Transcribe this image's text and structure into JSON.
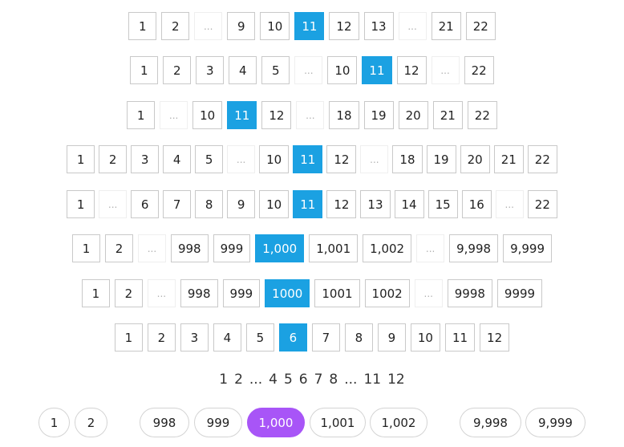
{
  "rows": [
    {
      "items": [
        "1",
        "2",
        "...",
        "9",
        "10",
        "11",
        "12",
        "13",
        "...",
        "21",
        "22"
      ],
      "active": 5
    },
    {
      "items": [
        "1",
        "2",
        "3",
        "4",
        "5",
        "...",
        "10",
        "11",
        "12",
        "...",
        "22"
      ],
      "active": 7
    },
    {
      "items": [
        "1",
        "...",
        "10",
        "11",
        "12",
        "...",
        "18",
        "19",
        "20",
        "21",
        "22"
      ],
      "active": 3
    },
    {
      "items": [
        "1",
        "2",
        "3",
        "4",
        "5",
        "...",
        "10",
        "11",
        "12",
        "...",
        "18",
        "19",
        "20",
        "21",
        "22"
      ],
      "active": 7
    },
    {
      "items": [
        "1",
        "...",
        "6",
        "7",
        "8",
        "9",
        "10",
        "11",
        "12",
        "13",
        "14",
        "15",
        "16",
        "...",
        "22"
      ],
      "active": 7
    },
    {
      "items": [
        "1",
        "2",
        "...",
        "998",
        "999",
        "1,000",
        "1,001",
        "1,002",
        "...",
        "9,998",
        "9,999"
      ],
      "active": 5
    },
    {
      "items": [
        "1",
        "2",
        "...",
        "998",
        "999",
        "1000",
        "1001",
        "1002",
        "...",
        "9998",
        "9999"
      ],
      "active": 5
    },
    {
      "items": [
        "1",
        "2",
        "3",
        "4",
        "5",
        "6",
        "7",
        "8",
        "9",
        "10",
        "11",
        "12"
      ],
      "active": 5
    }
  ],
  "plain_row": {
    "items": [
      "1",
      "2",
      "...",
      "4",
      "5",
      "6",
      "7",
      "8",
      "...",
      "11",
      "12"
    ]
  },
  "pill_row": {
    "items": [
      "1",
      "2",
      "998",
      "999",
      "1,000",
      "1,001",
      "1,002",
      "9,998",
      "9,999"
    ],
    "active": 4
  },
  "colors": {
    "active_blue": "#1ba1e2",
    "active_purple": "#a855f7",
    "border": "#c9c9c9"
  }
}
